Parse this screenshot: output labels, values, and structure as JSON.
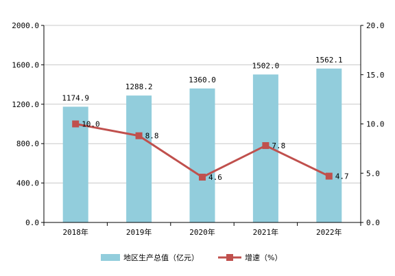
{
  "chart_data": {
    "type": "bar",
    "categories": [
      "2018年",
      "2019年",
      "2020年",
      "2021年",
      "2022年"
    ],
    "series": [
      {
        "name": "地区生产总值（亿元）",
        "type": "bar",
        "axis": "left",
        "values": [
          1174.9,
          1288.2,
          1360.0,
          1502.0,
          1562.1
        ],
        "labels": [
          "1174.9",
          "1288.2",
          "1360.0",
          "1502.0",
          "1562.1"
        ],
        "color": "#92CDDC"
      },
      {
        "name": "增速（%）",
        "type": "line",
        "axis": "right",
        "values": [
          10.0,
          8.8,
          4.6,
          7.8,
          4.7
        ],
        "labels": [
          "10.0",
          "8.8",
          "4.6",
          "7.8",
          "4.7"
        ],
        "color": "#C0504D"
      }
    ],
    "left_axis": {
      "range": [
        0,
        2000
      ],
      "ticks": [
        0,
        400,
        800,
        1200,
        1600,
        2000
      ],
      "tick_labels": [
        "0.0",
        "400.0",
        "800.0",
        "1200.0",
        "1600.0",
        "2000.0"
      ]
    },
    "right_axis": {
      "range": [
        0,
        20
      ],
      "ticks": [
        0,
        5,
        10,
        15,
        20
      ],
      "tick_labels": [
        "0.0",
        "5.0",
        "10.0",
        "15.0",
        "20.0"
      ]
    },
    "grid": true,
    "gridline_color": "#C8C8C8",
    "legend_position": "bottom"
  }
}
